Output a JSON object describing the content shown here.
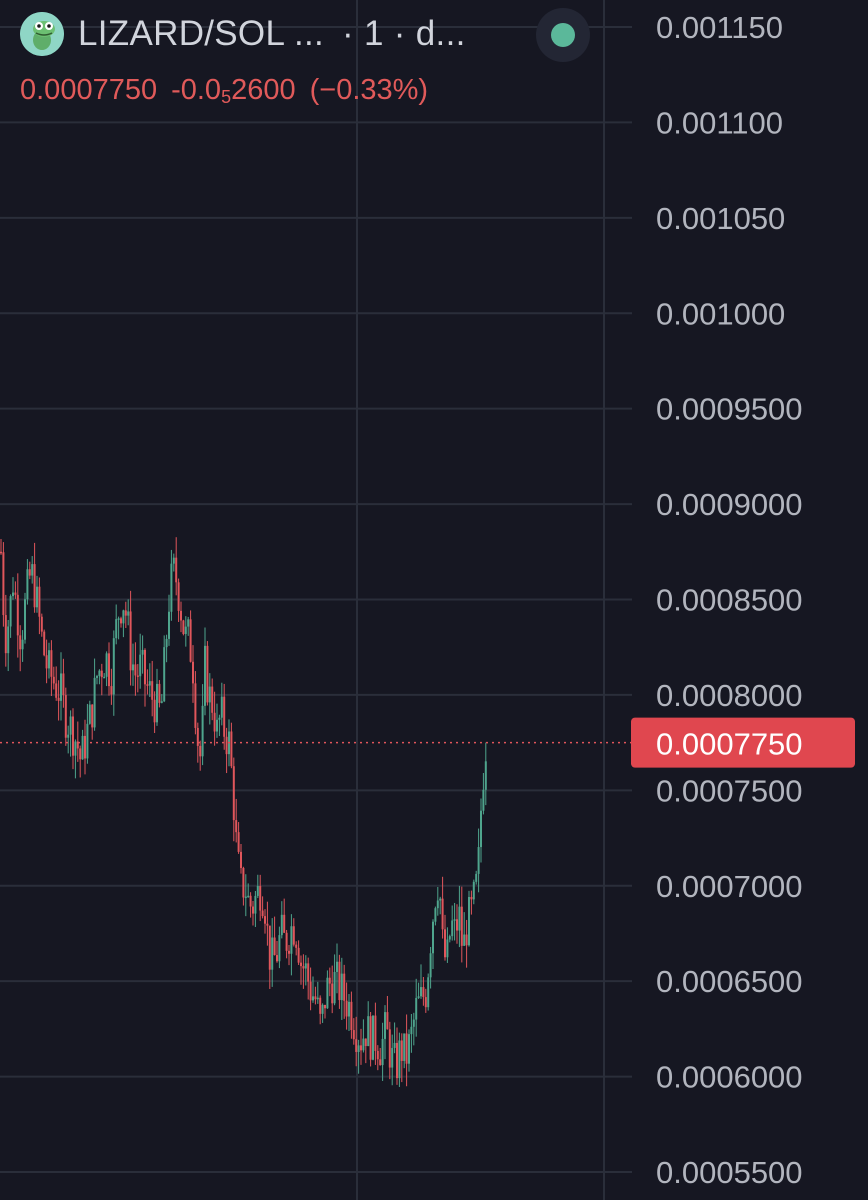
{
  "header": {
    "symbol": "LIZARD/SOL ...",
    "interval": "· 1 · d...",
    "last_price": "0.0007750",
    "change_prefix": "-0.0",
    "change_subscript": "5",
    "change_digits": "2600",
    "change_percent": "(−0.33%)",
    "status": "online",
    "logo_icon": "lizard-logo-icon"
  },
  "colors": {
    "background": "#161722",
    "grid": "#2a2e3a",
    "axis_text": "#b2b5be",
    "up": "#4fa58d",
    "down": "#e0565b",
    "price_label_bg": "#e0474f"
  },
  "chart_data": {
    "type": "candlestick",
    "ylim": [
      0.00054,
      0.00116
    ],
    "y_ticks": [
      "0.001150",
      "0.001100",
      "0.001050",
      "0.001000",
      "0.0009500",
      "0.0009000",
      "0.0008500",
      "0.0008000",
      "0.0007500",
      "0.0007000",
      "0.0006500",
      "0.0006000",
      "0.0005500"
    ],
    "current_price": 0.000775,
    "current_price_label": "0.0007750",
    "x_start": 0,
    "x_end": 485,
    "close_path": [
      [
        0,
        0.000875
      ],
      [
        4,
        0.00083
      ],
      [
        8,
        0.00084
      ],
      [
        12,
        0.00086
      ],
      [
        16,
        0.000845
      ],
      [
        20,
        0.00083
      ],
      [
        25,
        0.00085
      ],
      [
        30,
        0.000865
      ],
      [
        34,
        0.000855
      ],
      [
        38,
        0.00084
      ],
      [
        42,
        0.000825
      ],
      [
        46,
        0.000815
      ],
      [
        50,
        0.00081
      ],
      [
        55,
        0.000805
      ],
      [
        60,
        0.0008
      ],
      [
        64,
        0.00079
      ],
      [
        68,
        0.000785
      ],
      [
        72,
        0.00078
      ],
      [
        76,
        0.000775
      ],
      [
        80,
        0.000765
      ],
      [
        84,
        0.000775
      ],
      [
        88,
        0.000785
      ],
      [
        92,
        0.000795
      ],
      [
        96,
        0.00081
      ],
      [
        100,
        0.000815
      ],
      [
        105,
        0.00082
      ],
      [
        110,
        0.00081
      ],
      [
        114,
        0.00083
      ],
      [
        118,
        0.000845
      ],
      [
        122,
        0.00085
      ],
      [
        126,
        0.00084
      ],
      [
        130,
        0.00082
      ],
      [
        135,
        0.00081
      ],
      [
        140,
        0.000815
      ],
      [
        145,
        0.000805
      ],
      [
        150,
        0.0008
      ],
      [
        155,
        0.000795
      ],
      [
        160,
        0.00079
      ],
      [
        164,
        0.00082
      ],
      [
        168,
        0.00085
      ],
      [
        172,
        0.000865
      ],
      [
        176,
        0.00086
      ],
      [
        180,
        0.000845
      ],
      [
        184,
        0.00083
      ],
      [
        188,
        0.00083
      ],
      [
        192,
        0.000815
      ],
      [
        196,
        0.00078
      ],
      [
        200,
        0.000765
      ],
      [
        204,
        0.000815
      ],
      [
        208,
        0.0008
      ],
      [
        212,
        0.000795
      ],
      [
        216,
        0.00078
      ],
      [
        220,
        0.00079
      ],
      [
        224,
        0.00078
      ],
      [
        228,
        0.000775
      ],
      [
        232,
        0.00075
      ],
      [
        236,
        0.000715
      ],
      [
        240,
        0.0007
      ],
      [
        244,
        0.0007
      ],
      [
        248,
        0.00069
      ],
      [
        252,
        0.00069
      ],
      [
        256,
        0.000695
      ],
      [
        260,
        0.0007
      ],
      [
        264,
        0.00069
      ],
      [
        268,
        0.000665
      ],
      [
        272,
        0.00066
      ],
      [
        276,
        0.000665
      ],
      [
        280,
        0.000675
      ],
      [
        284,
        0.00067
      ],
      [
        288,
        0.000675
      ],
      [
        292,
        0.00068
      ],
      [
        296,
        0.000675
      ],
      [
        300,
        0.00066
      ],
      [
        305,
        0.000655
      ],
      [
        310,
        0.000645
      ],
      [
        315,
        0.00064
      ],
      [
        320,
        0.000625
      ],
      [
        325,
        0.000645
      ],
      [
        330,
        0.00065
      ],
      [
        335,
        0.00065
      ],
      [
        340,
        0.000645
      ],
      [
        345,
        0.00064
      ],
      [
        350,
        0.000635
      ],
      [
        355,
        0.000625
      ],
      [
        360,
        0.00062
      ],
      [
        365,
        0.000625
      ],
      [
        370,
        0.00062
      ],
      [
        375,
        0.00062
      ],
      [
        380,
        0.000615
      ],
      [
        385,
        0.000625
      ],
      [
        390,
        0.00061
      ],
      [
        395,
        0.000605
      ],
      [
        400,
        0.000615
      ],
      [
        405,
        0.00061
      ],
      [
        410,
        0.00062
      ],
      [
        415,
        0.000635
      ],
      [
        420,
        0.00064
      ],
      [
        425,
        0.000645
      ],
      [
        430,
        0.000675
      ],
      [
        434,
        0.000695
      ],
      [
        438,
        0.000705
      ],
      [
        442,
        0.000665
      ],
      [
        446,
        0.00066
      ],
      [
        450,
        0.00068
      ],
      [
        454,
        0.000675
      ],
      [
        458,
        0.000685
      ],
      [
        462,
        0.000665
      ],
      [
        466,
        0.00068
      ],
      [
        470,
        0.000685
      ],
      [
        474,
        0.000695
      ],
      [
        477,
        0.000705
      ],
      [
        480,
        0.00074
      ],
      [
        483,
        0.000765
      ],
      [
        485,
        0.000775
      ]
    ]
  }
}
